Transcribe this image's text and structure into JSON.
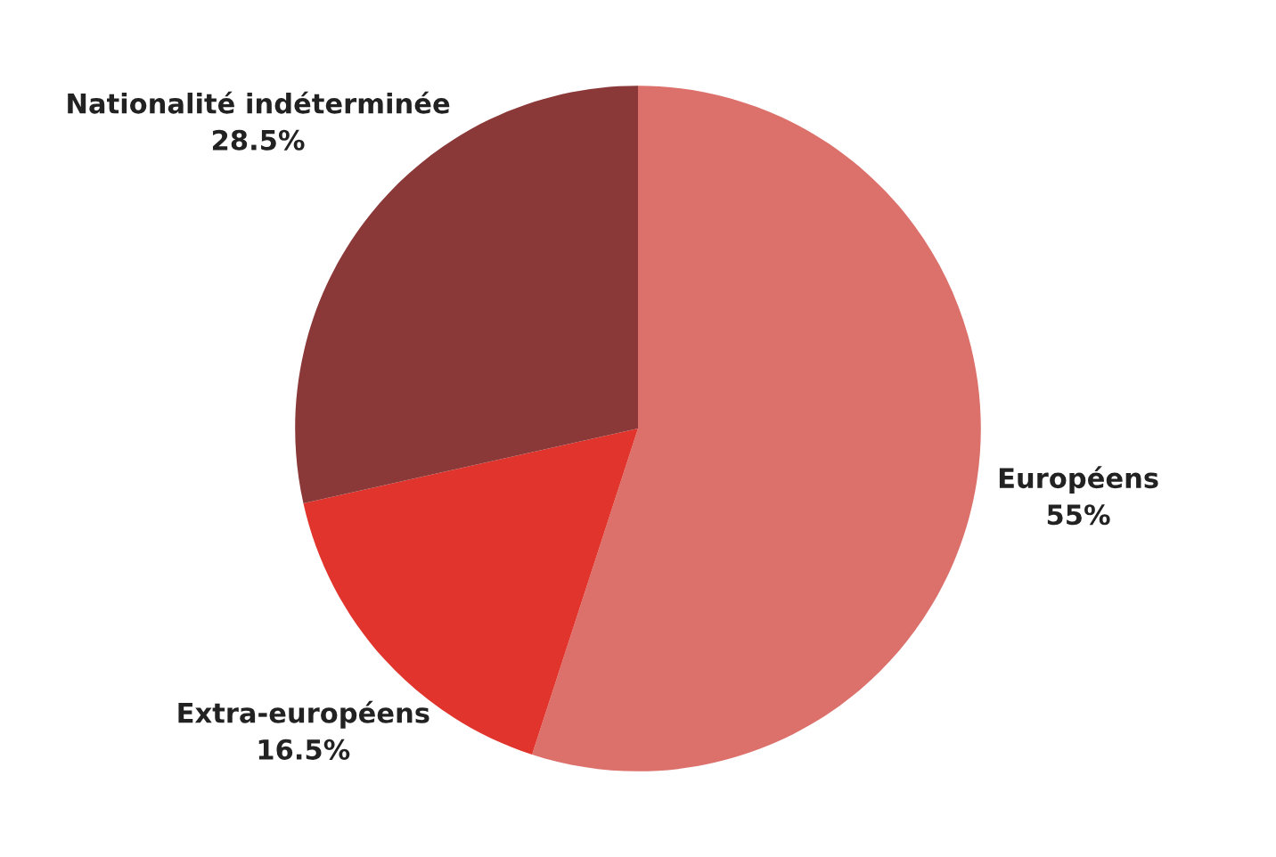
{
  "chart_data": {
    "type": "pie",
    "categories": [
      "Européens",
      "Extra-européens",
      "Nationalité indéterminée"
    ],
    "values": [
      55,
      16.5,
      28.5
    ],
    "value_labels": [
      "55%",
      "16.5%",
      "28.5%"
    ],
    "colors": [
      "#dc706b",
      "#e0342c",
      "#8b3838"
    ],
    "legend": false
  }
}
